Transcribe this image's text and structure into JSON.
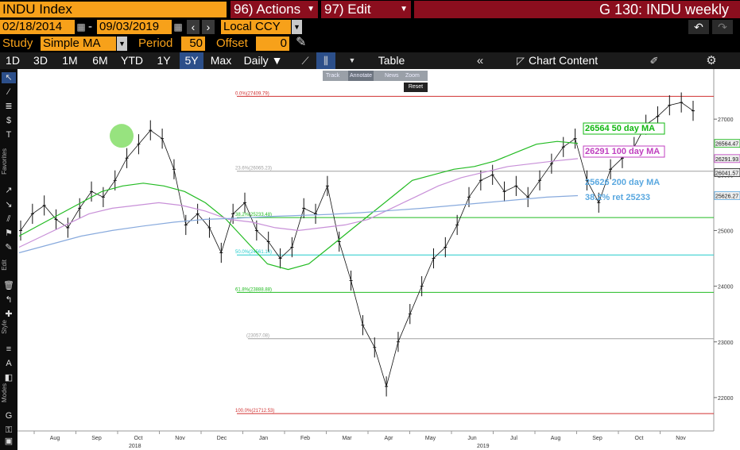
{
  "header": {
    "security": "INDU Index",
    "actions_menu": "96) Actions",
    "edit_menu": "97) Edit",
    "title": "G 130: INDU weekly"
  },
  "range": {
    "start": "02/18/2014",
    "separator": "-",
    "end": "09/03/2019",
    "currency": "Local CCY"
  },
  "study": {
    "label": "Study",
    "value": "Simple MA",
    "period_label": "Period",
    "period_value": "50",
    "offset_label": "Offset",
    "offset_value": "0"
  },
  "toolbar": {
    "periods": [
      "1D",
      "3D",
      "1M",
      "6M",
      "YTD",
      "1Y",
      "5Y",
      "Max"
    ],
    "active_period": "5Y",
    "frequency": "Daily ▼",
    "table_label": "Table",
    "chart_content_label": "Chart Content"
  },
  "mini_toolbar": {
    "track": "Track",
    "annotate": "Annotate",
    "news": "News",
    "zoom": "Zoom",
    "reset": "Reset"
  },
  "left_toolbar": {
    "favorites": "Favorites",
    "edit": "Edit",
    "style": "Style",
    "modes": "Modes"
  },
  "chart_data": {
    "type": "line",
    "x_labels": [
      "Aug",
      "Sep",
      "Oct",
      "Nov",
      "Dec",
      "Jan",
      "Feb",
      "Mar",
      "Apr",
      "May",
      "Jun",
      "Jul",
      "Aug",
      "Sep",
      "Oct",
      "Nov"
    ],
    "year_labels": [
      "2018",
      "2019"
    ],
    "y_ticks": [
      22000,
      23000,
      24000,
      25000,
      26000,
      27000
    ],
    "ylim": [
      21400,
      27900
    ],
    "last_value_tags": [
      "26564.47",
      "26291.93",
      "26041.57",
      "25626.27"
    ],
    "fib_levels": [
      {
        "label": "0.0%(27409.79)",
        "value": 27409.79,
        "color": "#d03030"
      },
      {
        "label": "23.6%(26065.23)",
        "value": 26065.23,
        "color": "#a0a0a0"
      },
      {
        "label": "38.2%(25233.48)",
        "value": 25233.48,
        "color": "#22bb22"
      },
      {
        "label": "50.0%(24561.16)",
        "value": 24561.16,
        "color": "#22cccc"
      },
      {
        "label": "61.8%(23888.88)",
        "value": 23888.88,
        "color": "#22bb22"
      },
      {
        "label": "(23057.08)",
        "value": 23057.08,
        "color": "#a0a0a0"
      },
      {
        "label": "100.0%(21712.53)",
        "value": 21712.53,
        "color": "#d03030"
      }
    ],
    "annotations": [
      {
        "text": "26564 50 day MA",
        "color": "#12b812"
      },
      {
        "text": "26291 100 day MA",
        "color": "#c040c0"
      },
      {
        "text": "25626 200 day MA",
        "color": "#5aa8e0"
      },
      {
        "text": "38.2% ret 25233",
        "color": "#5aa8e0"
      }
    ],
    "series": [
      {
        "color": "#000000",
        "x": [
          0,
          1,
          2,
          3,
          4,
          5,
          6,
          7,
          8,
          9,
          10,
          11,
          12,
          13,
          14,
          15,
          16,
          17,
          18,
          19,
          20,
          21,
          22,
          23,
          24,
          25,
          26,
          27,
          28,
          29,
          30,
          31,
          32,
          33,
          34,
          35,
          36,
          37,
          38,
          39,
          40,
          41,
          42,
          43,
          44,
          45,
          46,
          47,
          48,
          49,
          50,
          51,
          52,
          53,
          54,
          55,
          56,
          57
        ],
        "y": [
          25000,
          25300,
          25450,
          25200,
          25050,
          25400,
          25700,
          25600,
          25900,
          26300,
          26550,
          26800,
          26650,
          26100,
          25100,
          25300,
          25050,
          24600,
          25300,
          25500,
          25000,
          24800,
          24500,
          24700,
          25400,
          25300,
          25800,
          24800,
          24100,
          23300,
          22900,
          22200,
          23000,
          23500,
          24000,
          24500,
          24700,
          25100,
          25600,
          25900,
          26000,
          25700,
          25800,
          25600,
          25900,
          26200,
          26500,
          26650,
          25900,
          25500,
          26100,
          26300,
          26500,
          26900,
          27050,
          27250,
          27300,
          27150
        ]
      }
    ],
    "ma_lines": [
      {
        "name": "",
        "color": "#22bb22",
        "values": [
          24900,
          25100,
          25300,
          25500,
          25700,
          25800,
          25850,
          25800,
          25700,
          25500,
          25200,
          24800,
          24400,
          24300,
          24400,
          24700,
          25000,
          25300,
          25600,
          25900,
          26000,
          26100,
          26150,
          26250,
          26400,
          26550,
          26600,
          26564
        ]
      },
      {
        "name": "",
        "color": "#c890d8",
        "values": [
          24700,
          24900,
          25100,
          25300,
          25400,
          25450,
          25500,
          25450,
          25350,
          25200,
          25150,
          25050,
          25000,
          25050,
          25100,
          25200,
          25400,
          25600,
          25800,
          25950,
          26050,
          26150,
          26200,
          26250,
          26291
        ]
      },
      {
        "name": "",
        "color": "#88aadd",
        "values": [
          24600,
          24750,
          24900,
          25000,
          25080,
          25150,
          25200,
          25220,
          25250,
          25270,
          25290,
          25320,
          25360,
          25400,
          25450,
          25500,
          25550,
          25600,
          25626
        ]
      }
    ]
  }
}
